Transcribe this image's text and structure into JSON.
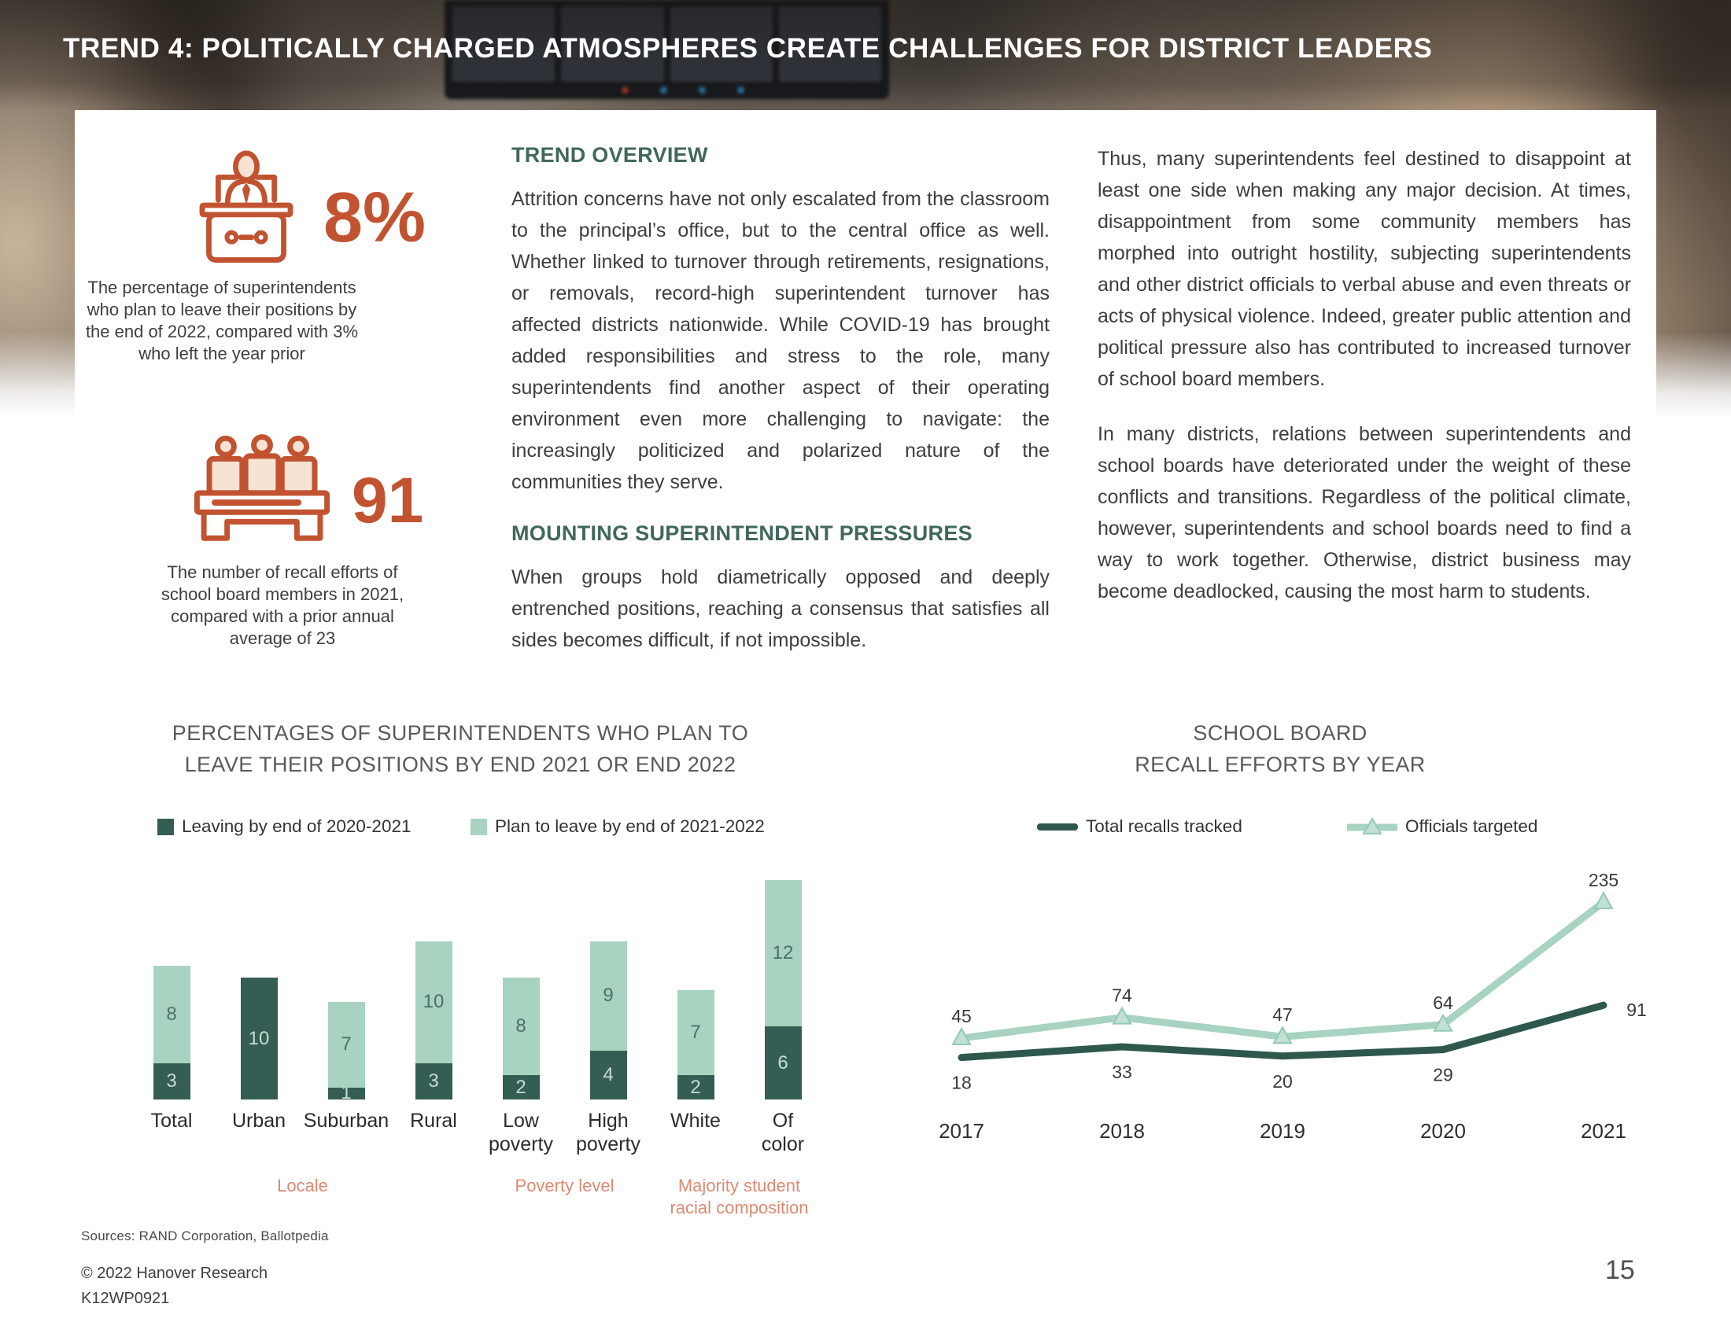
{
  "header": {
    "title": "TREND 4: POLITICALLY CHARGED ATMOSPHERES CREATE CHALLENGES FOR DISTRICT LEADERS"
  },
  "stats": [
    {
      "icon": "podium-speaker-icon",
      "value": "8%",
      "caption": "The percentage of superintendents who plan to leave their positions by the end of 2022, compared with 3% who left the year prior"
    },
    {
      "icon": "board-members-icon",
      "value": "91",
      "caption": "The number of recall efforts of school board members in 2021, compared with a prior annual average of 23"
    }
  ],
  "sections": [
    {
      "heading": "TREND OVERVIEW",
      "body": "Attrition concerns have not only escalated from the classroom to the principal’s office, but to the central office as well. Whether linked to turnover through retirements, resignations, or removals, record-high superintendent turnover has affected districts nationwide. While COVID-19 has brought added responsibilities and stress to the role, many superintendents find another aspect of their operating environment even more challenging to navigate: the increasingly politicized and polarized nature of the communities they serve."
    },
    {
      "heading": "MOUNTING SUPERINTENDENT PRESSURES",
      "body": "When groups hold diametrically opposed and deeply entrenched positions, reaching a consensus that satisfies all sides becomes difficult, if not impossible."
    }
  ],
  "right_column": {
    "paragraphs": [
      "Thus, many superintendents feel destined to disappoint at least one side when making any major decision. At times, disappointment from some community members has morphed into outright hostility, subjecting superintendents and other district officials to verbal abuse and even threats or acts of physical violence. Indeed, greater public attention and political pressure also has contributed to increased turnover of school board members.",
      "In many districts, relations between superintendents and school boards have deteriorated under the weight of these conflicts and transitions. Regardless of the political climate, however, superintendents and school boards need to find a way to work together. Otherwise, district business may become deadlocked, causing the most harm to students."
    ]
  },
  "chart_data": [
    {
      "type": "bar",
      "stacked": true,
      "title": "PERCENTAGES OF SUPERINTENDENTS WHO PLAN TO LEAVE THEIR POSITIONS BY END 2021 OR END 2022",
      "title_lines": [
        "PERCENTAGES OF SUPERINTENDENTS WHO PLAN TO",
        "LEAVE THEIR POSITIONS BY END 2021 OR END 2022"
      ],
      "categories": [
        "Total",
        "Urban",
        "Suburban",
        "Rural",
        "Low poverty",
        "High poverty",
        "White",
        "Of color"
      ],
      "categories_display": [
        "Total",
        "Urban",
        "Suburban",
        "Rural",
        "Low\npoverty",
        "High\npoverty",
        "White",
        "Of\ncolor"
      ],
      "series": [
        {
          "name": "Leaving by end of 2020-2021",
          "color": "#345E53",
          "values": [
            3,
            10,
            1,
            3,
            2,
            4,
            2,
            6
          ]
        },
        {
          "name": "Plan to leave by end of 2021-2022",
          "color": "#A7D3C0",
          "values": [
            8,
            0,
            7,
            10,
            8,
            9,
            7,
            12
          ]
        }
      ],
      "group_labels": [
        {
          "label": "Locale",
          "label_display": "Locale",
          "from_index": 1,
          "to_index": 2
        },
        {
          "label": "Poverty level",
          "label_display": "Poverty level",
          "from_index": 4,
          "to_index": 5
        },
        {
          "label": "Majority student racial composition",
          "label_display": "Majority student\nracial composition",
          "from_index": 6,
          "to_index": 7
        }
      ],
      "xlabel": "",
      "ylabel": "",
      "ylim": [
        0,
        18
      ],
      "gridlines": false,
      "legend_position": "top",
      "value_labels": "inside"
    },
    {
      "type": "line",
      "title": "SCHOOL BOARD RECALL EFFORTS BY YEAR",
      "title_lines": [
        "SCHOOL BOARD",
        "RECALL EFFORTS BY YEAR"
      ],
      "x": [
        "2017",
        "2018",
        "2019",
        "2020",
        "2021"
      ],
      "series": [
        {
          "name": "Total recalls tracked",
          "color": "#2E584D",
          "marker": "none",
          "values": [
            18,
            33,
            20,
            29,
            91
          ]
        },
        {
          "name": "Officials targeted",
          "color": "#A7D3C0",
          "marker": "triangle",
          "values": [
            45,
            74,
            47,
            64,
            235
          ]
        }
      ],
      "ylim": [
        0,
        250
      ],
      "gridlines": false,
      "legend_position": "top",
      "value_labels": "outside"
    }
  ],
  "footer": {
    "sources": "Sources: RAND Corporation, Ballotpedia",
    "copyright": "© 2022 Hanover Research",
    "document_code": "K12WP0921",
    "page_number": "15"
  },
  "colors": {
    "accent_orange": "#C25330",
    "accent_orange_fill": "#F6E3D3",
    "accent_salmon": "#DD8A72",
    "dark_green": "#345E53",
    "light_green": "#A7D3C0",
    "heading_teal": "#41675D",
    "chart_title_gray": "#595959",
    "body_text": "#3E3E3E",
    "bar_value_on_dark": "#C6DDD2",
    "bar_value_on_light": "#4F6F63"
  }
}
